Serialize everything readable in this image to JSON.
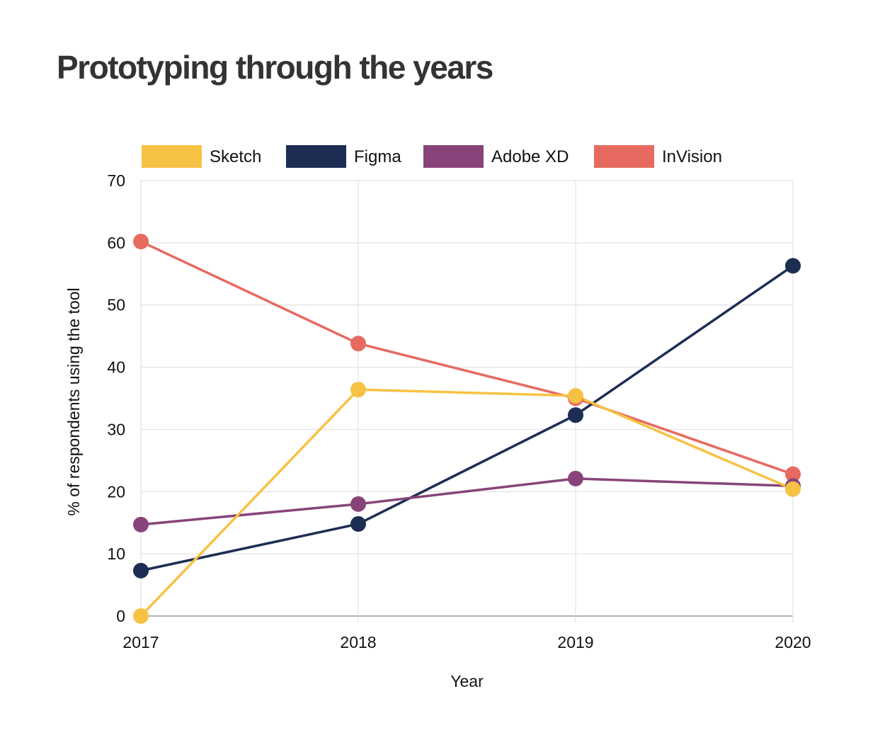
{
  "chart_data": {
    "type": "line",
    "title": "Prototyping through the years",
    "xlabel": "Year",
    "ylabel": "% of respondents using the tool",
    "categories": [
      "2017",
      "2018",
      "2019",
      "2020"
    ],
    "ylim": [
      0,
      70
    ],
    "yticks": [
      0,
      10,
      20,
      30,
      40,
      50,
      60,
      70
    ],
    "grid": true,
    "legend_position": "top",
    "series": [
      {
        "name": "Sketch",
        "color": "#F7C244",
        "values": [
          0,
          36.4,
          35.4,
          20.4
        ]
      },
      {
        "name": "Figma",
        "color": "#1D2D54",
        "values": [
          7.3,
          14.8,
          32.3,
          56.3
        ]
      },
      {
        "name": "Adobe XD",
        "color": "#88447A",
        "values": [
          14.7,
          18.0,
          22.1,
          20.9
        ]
      },
      {
        "name": "InVision",
        "color": "#E76A60",
        "values": [
          60.2,
          43.8,
          35.0,
          22.8
        ]
      }
    ]
  }
}
